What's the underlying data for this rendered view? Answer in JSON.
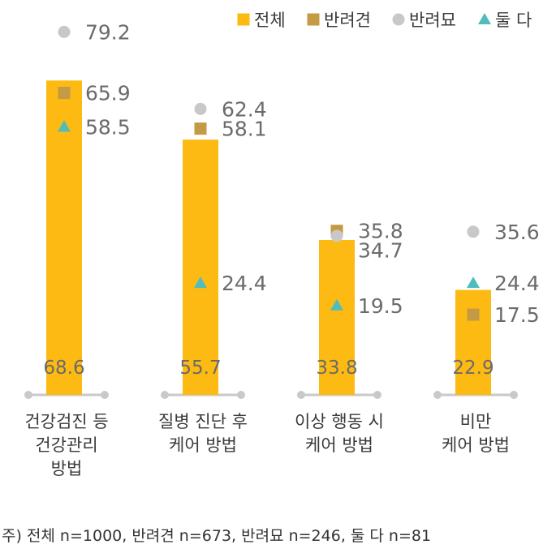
{
  "chart_data": {
    "type": "bar",
    "categories": [
      [
        "건강검진 등",
        "건강관리",
        "방법"
      ],
      [
        "질병 진단 후",
        "케어 방법"
      ],
      [
        "이상 행동 시",
        "케어 방법"
      ],
      [
        "비만",
        "케어 방법"
      ]
    ],
    "series": [
      {
        "name": "전체",
        "mark": "bar",
        "color": "#FDBA12",
        "values": [
          68.6,
          55.7,
          33.8,
          22.9
        ]
      },
      {
        "name": "반려견",
        "mark": "square",
        "color": "#C49A45",
        "values": [
          65.9,
          58.1,
          35.8,
          17.5
        ]
      },
      {
        "name": "반려묘",
        "mark": "circle",
        "color": "#C8C8C8",
        "values": [
          79.2,
          62.4,
          34.7,
          35.6
        ]
      },
      {
        "name": "둘 다",
        "mark": "triangle",
        "color": "#4FBDBE",
        "values": [
          58.5,
          24.4,
          19.5,
          24.4
        ]
      }
    ],
    "ylim": [
      0,
      85
    ],
    "legend_position": "top-right",
    "grid": false,
    "note": "주) 전체 n=1000, 반려견 n=673, 반려묘 n=246, 둘 다 n=81"
  }
}
